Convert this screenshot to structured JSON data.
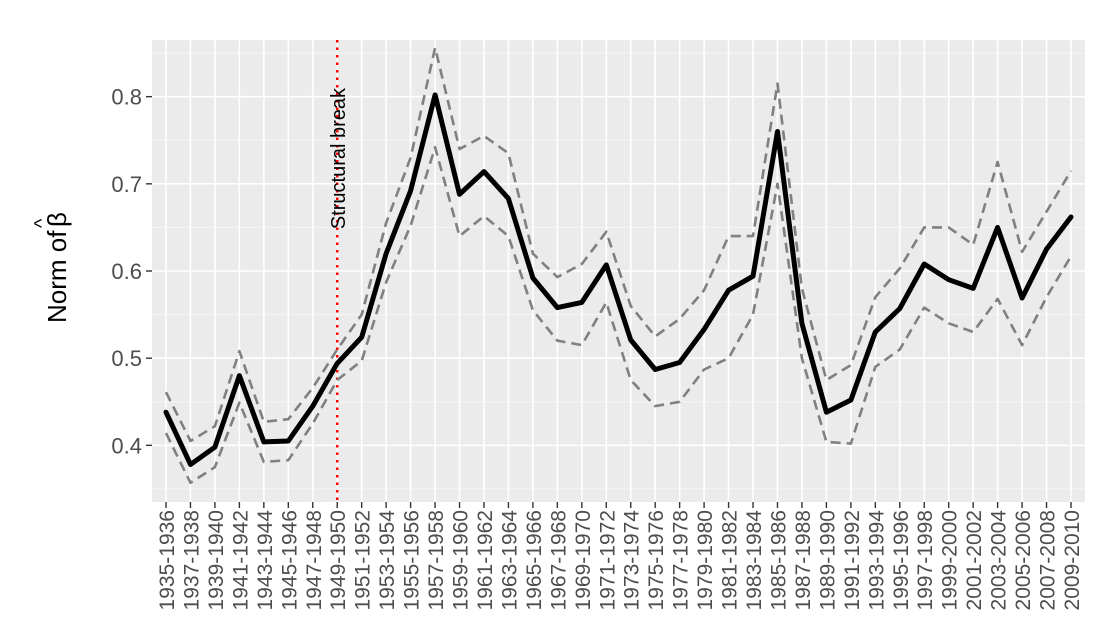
{
  "chart_data": {
    "type": "line",
    "title": "",
    "xlabel": "",
    "ylabel": "Norm of",
    "ylabel_symbol": "β",
    "ylabel_hat": "^",
    "ylim": [
      0.335,
      0.865
    ],
    "yticks": [
      0.4,
      0.5,
      0.6,
      0.7,
      0.8
    ],
    "ytick_labels": [
      "0.4",
      "0.5",
      "0.6",
      "0.7",
      "0.8"
    ],
    "grid": true,
    "categories": [
      "1935-1936",
      "1937-1938",
      "1939-1940",
      "1941-1942",
      "1943-1944",
      "1945-1946",
      "1947-1948",
      "1949-1950",
      "1951-1952",
      "1953-1954",
      "1955-1956",
      "1957-1958",
      "1959-1960",
      "1961-1962",
      "1963-1964",
      "1965-1966",
      "1967-1968",
      "1969-1970",
      "1971-1972",
      "1973-1974",
      "1975-1976",
      "1977-1978",
      "1979-1980",
      "1981-1982",
      "1983-1984",
      "1985-1986",
      "1987-1988",
      "1989-1990",
      "1991-1992",
      "1993-1994",
      "1995-1996",
      "1997-1998",
      "1999-2000",
      "2001-2002",
      "2003-2004",
      "2005-2006",
      "2007-2008",
      "2009-2010"
    ],
    "series": [
      {
        "role": "estimate",
        "style": "solid",
        "color": "#000000",
        "values": [
          0.438,
          0.378,
          0.398,
          0.48,
          0.404,
          0.405,
          0.445,
          0.494,
          0.524,
          0.62,
          0.692,
          0.802,
          0.688,
          0.714,
          0.683,
          0.592,
          0.558,
          0.564,
          0.607,
          0.521,
          0.487,
          0.495,
          0.533,
          0.578,
          0.594,
          0.76,
          0.54,
          0.438,
          0.452,
          0.53,
          0.557,
          0.608,
          0.59,
          0.58,
          0.65,
          0.569,
          0.625,
          0.662
        ]
      },
      {
        "role": "upper-band",
        "style": "dashed",
        "color": "#808080",
        "values": [
          0.461,
          0.405,
          0.422,
          0.508,
          0.427,
          0.43,
          0.466,
          0.51,
          0.55,
          0.655,
          0.73,
          0.856,
          0.74,
          0.755,
          0.735,
          0.62,
          0.593,
          0.608,
          0.645,
          0.56,
          0.525,
          0.545,
          0.578,
          0.64,
          0.64,
          0.815,
          0.58,
          0.475,
          0.492,
          0.57,
          0.603,
          0.65,
          0.65,
          0.63,
          0.725,
          0.622,
          0.668,
          0.715
        ]
      },
      {
        "role": "lower-band",
        "style": "dashed",
        "color": "#808080",
        "values": [
          0.414,
          0.357,
          0.375,
          0.449,
          0.381,
          0.383,
          0.425,
          0.475,
          0.497,
          0.587,
          0.652,
          0.742,
          0.64,
          0.663,
          0.64,
          0.555,
          0.52,
          0.515,
          0.564,
          0.475,
          0.445,
          0.45,
          0.487,
          0.5,
          0.55,
          0.7,
          0.5,
          0.404,
          0.402,
          0.49,
          0.51,
          0.558,
          0.54,
          0.53,
          0.568,
          0.515,
          0.57,
          0.617
        ]
      }
    ],
    "annotation": {
      "label": "Structural break",
      "at_category": "1949-1950",
      "color": "#ff0000",
      "style": "dotted"
    }
  }
}
